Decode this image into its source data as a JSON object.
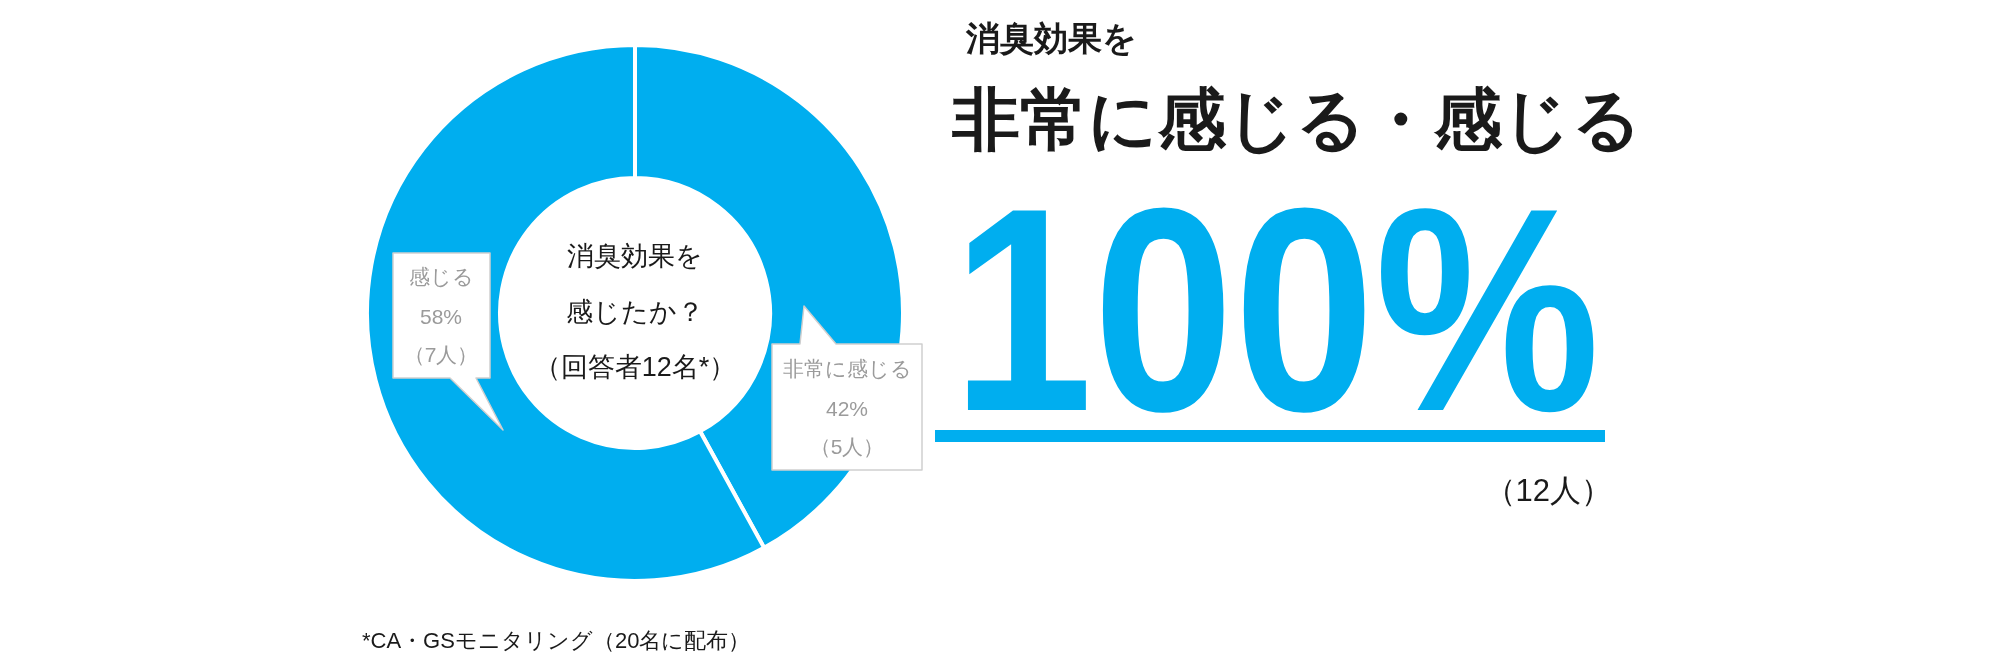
{
  "chart_data": {
    "type": "donut",
    "title": "消臭効果を",
    "subtitle": "非常に感じる・感じる",
    "categories": [
      "非常に感じる",
      "感じる"
    ],
    "values": [
      42,
      58
    ],
    "colors": [
      "#00aeef",
      "#00aeef"
    ],
    "value_labels": [
      "42%\n（5人）",
      "58%\n（7人）"
    ],
    "annotations": [
      "消臭効果を",
      "感じたか？",
      "（回答者12名*）",
      "100%",
      "（12人）",
      "*CA・GSモニタリング（20名に配布）"
    ]
  }
}
